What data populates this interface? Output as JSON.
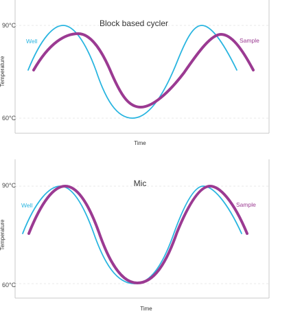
{
  "chart_data": [
    {
      "type": "line",
      "title": "Block based cycler",
      "xlabel": "Time",
      "ylabel": "Temperature",
      "y_ticks": [
        "90°C",
        "60°C"
      ],
      "ylim": [
        60,
        90
      ],
      "grid": true,
      "colors": {
        "well": "#29b5e0",
        "sample": "#9b3a92"
      },
      "series": [
        {
          "name": "Well",
          "x": [
            0,
            0.1,
            0.2,
            0.3,
            0.4,
            0.5,
            0.6,
            0.7,
            0.8,
            0.9,
            1
          ],
          "y": [
            77,
            84.5,
            90,
            83,
            70,
            60.5,
            68,
            83,
            90,
            85,
            77
          ]
        },
        {
          "name": "Sample",
          "x": [
            0,
            0.1,
            0.2,
            0.3,
            0.4,
            0.5,
            0.6,
            0.7,
            0.8,
            0.9,
            1
          ],
          "y": [
            77,
            81.5,
            86,
            84,
            74,
            64,
            67,
            78,
            86,
            84,
            77
          ]
        }
      ]
    },
    {
      "type": "line",
      "title": "Mic",
      "xlabel": "Time",
      "ylabel": "Temperature",
      "y_ticks": [
        "90°C",
        "60°C"
      ],
      "ylim": [
        60,
        90
      ],
      "grid": true,
      "colors": {
        "well": "#29b5e0",
        "sample": "#9b3a92"
      },
      "series": [
        {
          "name": "Well",
          "x": [
            0,
            0.1,
            0.2,
            0.3,
            0.4,
            0.5,
            0.6,
            0.7,
            0.8,
            0.9,
            1
          ],
          "y": [
            75,
            85,
            90,
            82,
            68,
            60.5,
            68,
            82,
            90,
            85,
            75
          ]
        },
        {
          "name": "Sample",
          "x": [
            0,
            0.1,
            0.2,
            0.3,
            0.4,
            0.5,
            0.6,
            0.7,
            0.8,
            0.9,
            1
          ],
          "y": [
            75,
            84,
            90,
            83,
            69,
            60.5,
            67,
            81,
            90,
            86,
            75
          ]
        }
      ]
    }
  ]
}
